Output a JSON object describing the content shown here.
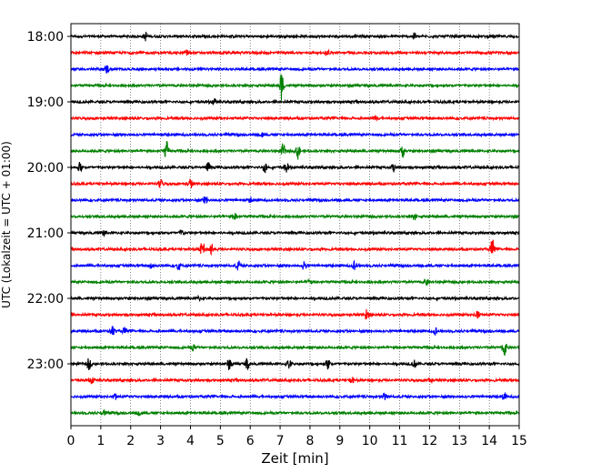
{
  "chart_data": {
    "type": "line",
    "title": "",
    "xlabel": "Zeit  [min]",
    "ylabel": "UTC (Lokalzeit = UTC + 01:00)",
    "xlim": [
      0,
      15
    ],
    "x_ticks": [
      "0",
      "1",
      "2",
      "3",
      "4",
      "5",
      "6",
      "7",
      "8",
      "9",
      "10",
      "11",
      "12",
      "13",
      "14",
      "15"
    ],
    "y_ticks": [
      "18:00",
      "19:00",
      "20:00",
      "21:00",
      "22:00",
      "23:00"
    ],
    "grid": "vertical-dotted",
    "trace_colors": [
      "#000000",
      "#ff0000",
      "#0000ff",
      "#008000"
    ],
    "traces": [
      {
        "start": "18:00",
        "events": [
          {
            "x": 2.5,
            "amp": 0.25
          },
          {
            "x": 11.5,
            "amp": 0.2
          }
        ]
      },
      {
        "start": "18:15",
        "events": [
          {
            "x": 3.9,
            "amp": 0.2
          },
          {
            "x": 8.6,
            "amp": 0.15
          }
        ]
      },
      {
        "start": "18:30",
        "events": [
          {
            "x": 1.2,
            "amp": 0.25
          }
        ]
      },
      {
        "start": "18:45",
        "events": [
          {
            "x": 7.05,
            "amp": 0.9
          }
        ]
      },
      {
        "start": "19:00",
        "events": [
          {
            "x": 4.8,
            "amp": 0.15
          }
        ]
      },
      {
        "start": "19:15",
        "events": [
          {
            "x": 10.2,
            "amp": 0.15
          }
        ]
      },
      {
        "start": "19:30",
        "events": [
          {
            "x": 6.4,
            "amp": 0.15
          }
        ]
      },
      {
        "start": "19:45",
        "events": [
          {
            "x": 3.2,
            "amp": 0.55
          },
          {
            "x": 7.1,
            "amp": 0.45
          },
          {
            "x": 7.6,
            "amp": 0.5
          },
          {
            "x": 11.1,
            "amp": 0.35
          }
        ]
      },
      {
        "start": "20:00",
        "events": [
          {
            "x": 0.3,
            "amp": 0.3
          },
          {
            "x": 4.6,
            "amp": 0.3
          },
          {
            "x": 6.5,
            "amp": 0.3
          },
          {
            "x": 7.2,
            "amp": 0.3
          },
          {
            "x": 10.8,
            "amp": 0.25
          }
        ]
      },
      {
        "start": "20:15",
        "events": [
          {
            "x": 3.0,
            "amp": 0.25
          },
          {
            "x": 4.0,
            "amp": 0.3
          }
        ]
      },
      {
        "start": "20:30",
        "events": [
          {
            "x": 4.5,
            "amp": 0.3
          },
          {
            "x": 6.0,
            "amp": 0.15
          }
        ]
      },
      {
        "start": "20:45",
        "events": [
          {
            "x": 5.5,
            "amp": 0.25
          },
          {
            "x": 11.5,
            "amp": 0.2
          }
        ]
      },
      {
        "start": "21:00",
        "events": [
          {
            "x": 1.1,
            "amp": 0.2
          },
          {
            "x": 3.7,
            "amp": 0.2
          }
        ]
      },
      {
        "start": "21:15",
        "events": [
          {
            "x": 4.4,
            "amp": 0.55
          },
          {
            "x": 4.7,
            "amp": 0.45
          },
          {
            "x": 14.1,
            "amp": 0.6
          }
        ]
      },
      {
        "start": "21:30",
        "events": [
          {
            "x": 2.7,
            "amp": 0.3
          },
          {
            "x": 3.6,
            "amp": 0.3
          },
          {
            "x": 5.6,
            "amp": 0.3
          },
          {
            "x": 7.8,
            "amp": 0.3
          },
          {
            "x": 9.5,
            "amp": 0.3
          }
        ]
      },
      {
        "start": "21:45",
        "events": [
          {
            "x": 8.0,
            "amp": 0.2
          },
          {
            "x": 11.9,
            "amp": 0.2
          }
        ]
      },
      {
        "start": "22:00",
        "events": [
          {
            "x": 4.3,
            "amp": 0.15
          }
        ]
      },
      {
        "start": "22:15",
        "events": [
          {
            "x": 9.9,
            "amp": 0.3
          },
          {
            "x": 13.6,
            "amp": 0.25
          }
        ]
      },
      {
        "start": "22:30",
        "events": [
          {
            "x": 1.4,
            "amp": 0.3
          },
          {
            "x": 1.8,
            "amp": 0.2
          },
          {
            "x": 12.2,
            "amp": 0.2
          }
        ]
      },
      {
        "start": "22:45",
        "events": [
          {
            "x": 4.1,
            "amp": 0.15
          },
          {
            "x": 14.5,
            "amp": 0.55
          }
        ]
      },
      {
        "start": "23:00",
        "events": [
          {
            "x": 0.6,
            "amp": 0.35
          },
          {
            "x": 5.3,
            "amp": 0.35
          },
          {
            "x": 5.9,
            "amp": 0.35
          },
          {
            "x": 7.3,
            "amp": 0.3
          },
          {
            "x": 8.6,
            "amp": 0.3
          },
          {
            "x": 11.5,
            "amp": 0.2
          }
        ]
      },
      {
        "start": "23:15",
        "events": [
          {
            "x": 0.7,
            "amp": 0.25
          },
          {
            "x": 9.4,
            "amp": 0.2
          },
          {
            "x": 12.0,
            "amp": 0.2
          }
        ]
      },
      {
        "start": "23:30",
        "events": [
          {
            "x": 1.5,
            "amp": 0.2
          },
          {
            "x": 10.5,
            "amp": 0.25
          },
          {
            "x": 14.5,
            "amp": 0.2
          }
        ]
      },
      {
        "start": "23:45",
        "events": [
          {
            "x": 1.1,
            "amp": 0.15
          },
          {
            "x": 2.3,
            "amp": 0.15
          }
        ]
      }
    ]
  }
}
